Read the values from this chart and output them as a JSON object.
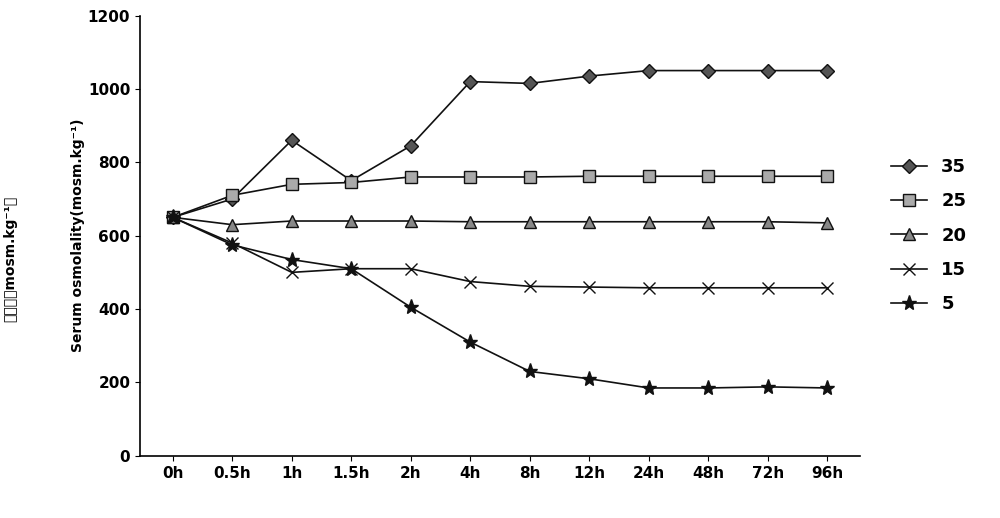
{
  "x_labels": [
    "0h",
    "0.5h",
    "1h",
    "1.5h",
    "2h",
    "4h",
    "8h",
    "12h",
    "24h",
    "48h",
    "72h",
    "96h"
  ],
  "series": [
    {
      "label": "35",
      "marker": "D",
      "markersize": 7,
      "markerfacecolor": "#555555",
      "color": "#111111",
      "linewidth": 1.2,
      "values": [
        650,
        700,
        860,
        750,
        845,
        1020,
        1015,
        1035,
        1050,
        1050,
        1050,
        1050
      ]
    },
    {
      "label": "25",
      "marker": "s",
      "markersize": 8,
      "markerfacecolor": "#aaaaaa",
      "color": "#111111",
      "linewidth": 1.2,
      "values": [
        650,
        710,
        740,
        745,
        760,
        760,
        760,
        762,
        762,
        762,
        762,
        762
      ]
    },
    {
      "label": "20",
      "marker": "^",
      "markersize": 8,
      "markerfacecolor": "#888888",
      "color": "#111111",
      "linewidth": 1.2,
      "values": [
        650,
        630,
        640,
        640,
        640,
        638,
        638,
        638,
        638,
        638,
        638,
        635
      ]
    },
    {
      "label": "15",
      "marker": "x",
      "markersize": 9,
      "markerfacecolor": "#111111",
      "color": "#111111",
      "linewidth": 1.2,
      "values": [
        650,
        580,
        500,
        510,
        510,
        475,
        462,
        460,
        458,
        458,
        458,
        458
      ]
    },
    {
      "label": "5",
      "marker": "*",
      "markersize": 11,
      "markerfacecolor": "#111111",
      "color": "#111111",
      "linewidth": 1.2,
      "values": [
        650,
        575,
        535,
        510,
        405,
        310,
        230,
        210,
        185,
        185,
        188,
        185
      ]
    }
  ],
  "ylabel_cn": "滲透压（mosm.kg⁻¹）",
  "ylabel_en": "Serum osmolality(mosm.kg⁻¹)",
  "ylim": [
    0,
    1200
  ],
  "yticks": [
    0,
    200,
    400,
    600,
    800,
    1000,
    1200
  ],
  "background_color": "#ffffff"
}
